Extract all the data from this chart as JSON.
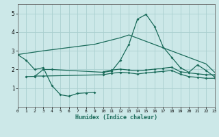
{
  "xlabel": "Humidex (Indice chaleur)",
  "xlim": [
    0,
    23
  ],
  "ylim": [
    0,
    5.5
  ],
  "yticks": [
    1,
    2,
    3,
    4,
    5
  ],
  "xticks": [
    0,
    1,
    2,
    3,
    4,
    5,
    6,
    7,
    8,
    9,
    10,
    11,
    12,
    13,
    14,
    15,
    16,
    17,
    18,
    19,
    20,
    21,
    22,
    23
  ],
  "bg_color": "#cce8e8",
  "grid_color": "#aacfcf",
  "line_color": "#1a6b5a",
  "series1_x": [
    0,
    1,
    2,
    3,
    4,
    5,
    6,
    7,
    8,
    9
  ],
  "series1_y": [
    2.8,
    2.5,
    2.0,
    2.1,
    1.15,
    0.65,
    0.57,
    0.72,
    0.75,
    0.78
  ],
  "series2_x": [
    2,
    3,
    10,
    11,
    12,
    13,
    14,
    15,
    16,
    17,
    18,
    19,
    20,
    21,
    22,
    23
  ],
  "series2_y": [
    1.65,
    1.65,
    1.72,
    1.8,
    1.85,
    1.82,
    1.76,
    1.82,
    1.86,
    1.9,
    1.95,
    1.75,
    1.62,
    1.58,
    1.53,
    1.53
  ],
  "series3_x": [
    10,
    11,
    12,
    13,
    14,
    15,
    16,
    17,
    18,
    19,
    20,
    21,
    22,
    23
  ],
  "series3_y": [
    1.88,
    1.97,
    2.02,
    1.97,
    1.93,
    1.97,
    2.02,
    2.07,
    2.12,
    1.88,
    1.82,
    1.77,
    1.72,
    1.72
  ],
  "series4_x": [
    1,
    2,
    3,
    4,
    10,
    11,
    12,
    13,
    14,
    15,
    16,
    17,
    18,
    19,
    20,
    21,
    22,
    23
  ],
  "series4_y": [
    1.62,
    1.63,
    2.0,
    2.0,
    1.85,
    1.92,
    2.5,
    3.35,
    4.7,
    4.95,
    4.3,
    3.2,
    2.65,
    2.1,
    1.85,
    2.25,
    1.95,
    1.6
  ],
  "series5_x": [
    0,
    3,
    9,
    12,
    13,
    22,
    23
  ],
  "series5_y": [
    2.8,
    3.0,
    3.35,
    3.7,
    3.85,
    2.3,
    1.85
  ]
}
